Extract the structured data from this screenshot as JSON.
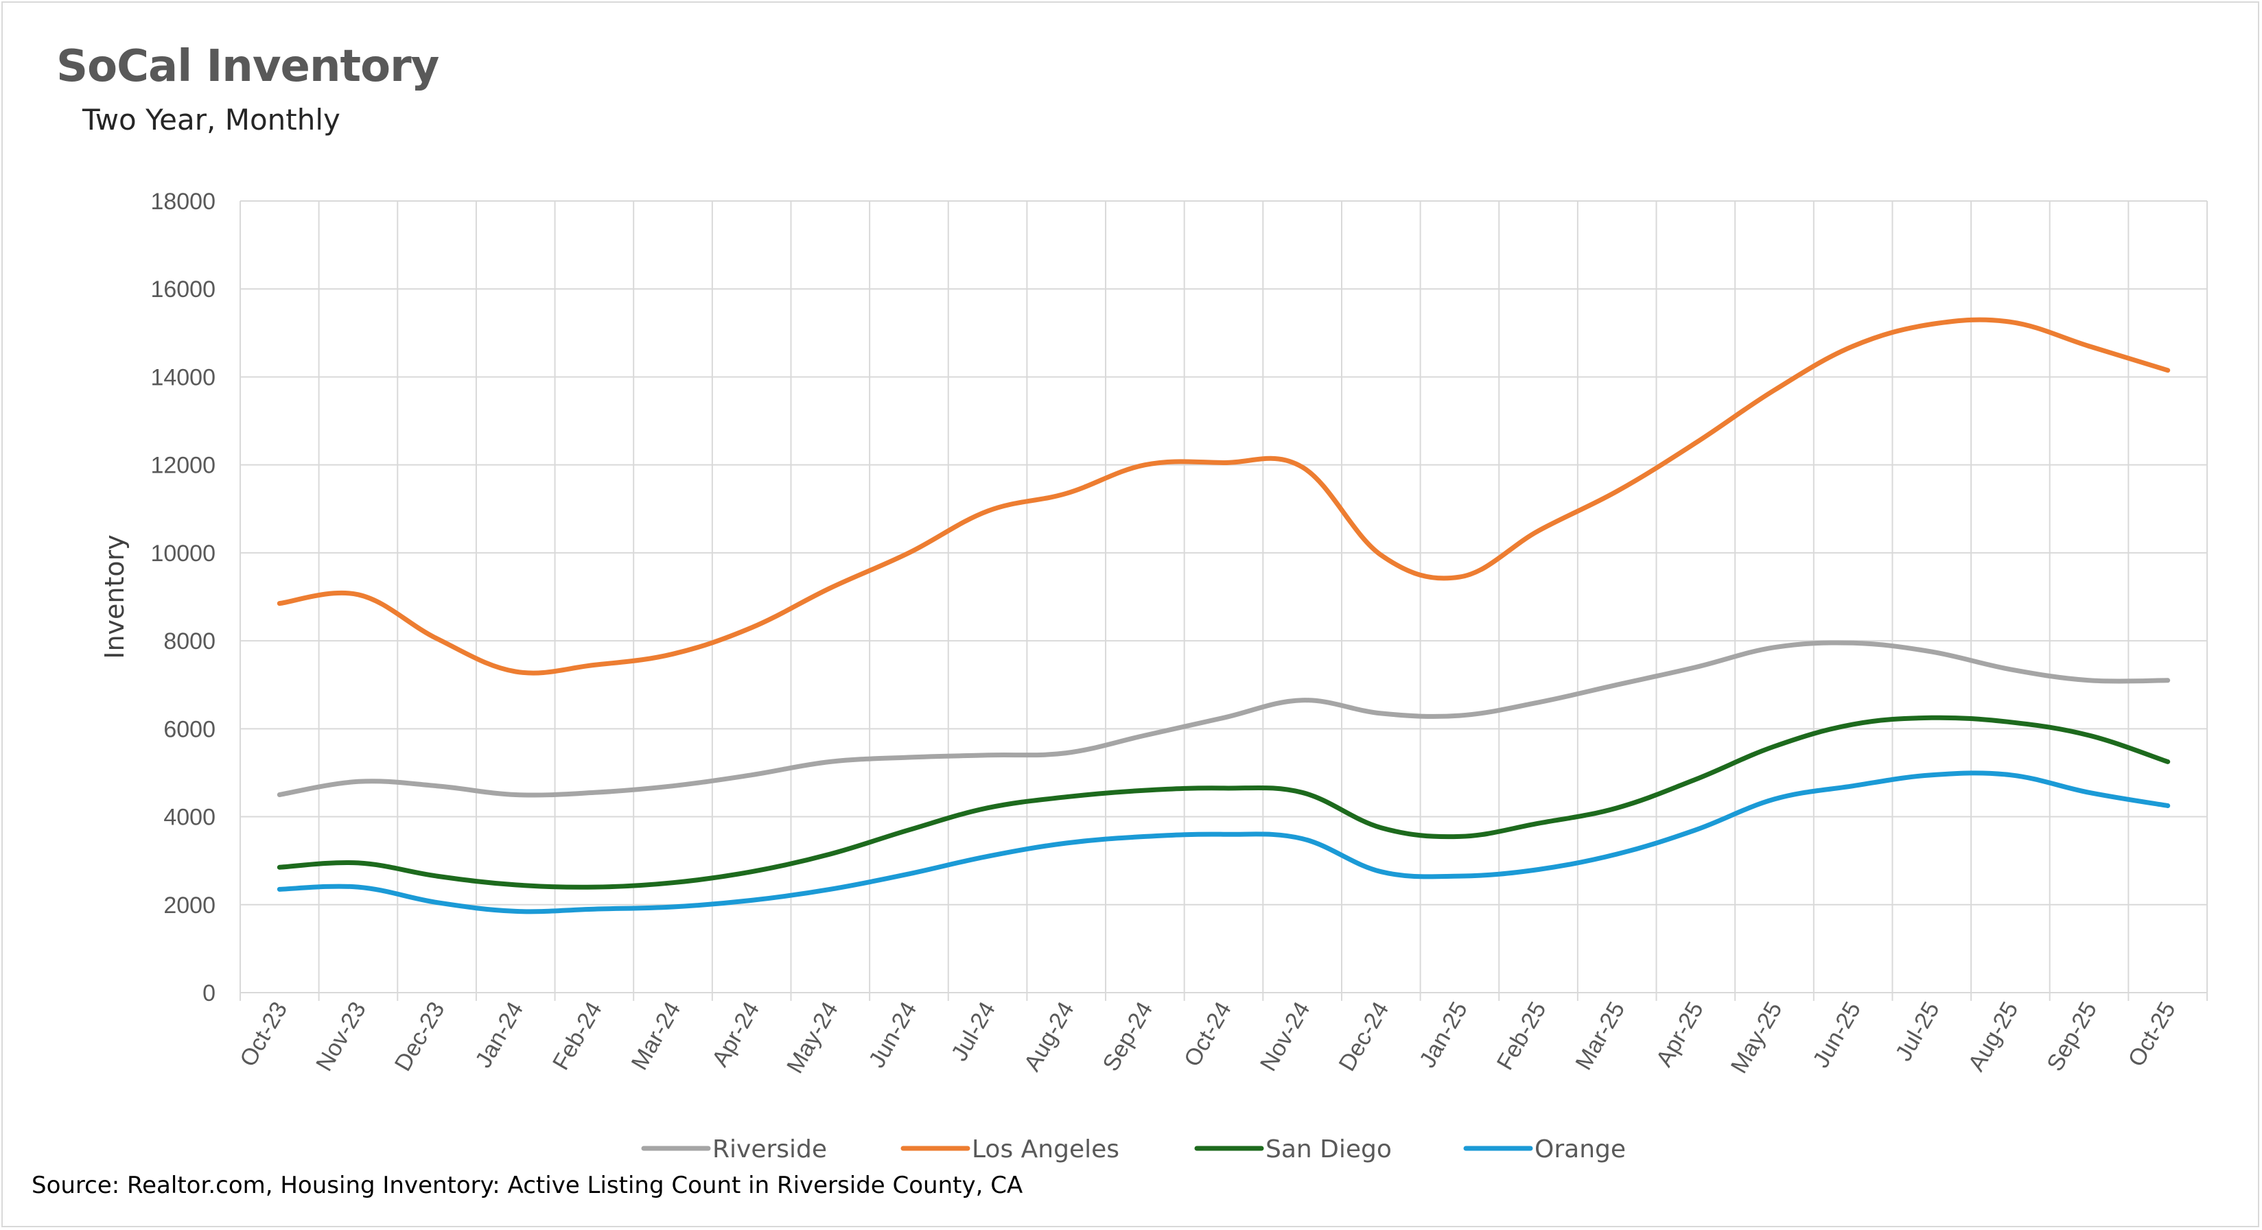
{
  "title": "SoCal Inventory",
  "subtitle": "Two Year, Monthly",
  "source": "Source: Realtor.com, Housing Inventory: Active Listing Count in Riverside County, CA",
  "chart_data": {
    "type": "line",
    "title": "SoCal Inventory",
    "subtitle": "Two Year, Monthly",
    "xlabel": "",
    "ylabel": "Inventory",
    "ylim": [
      0,
      18000
    ],
    "yticks": [
      0,
      2000,
      4000,
      6000,
      8000,
      10000,
      12000,
      14000,
      16000,
      18000
    ],
    "grid": true,
    "legend_position": "bottom",
    "categories": [
      "Oct-23",
      "Nov-23",
      "Dec-23",
      "Jan-24",
      "Feb-24",
      "Mar-24",
      "Apr-24",
      "May-24",
      "Jun-24",
      "Jul-24",
      "Aug-24",
      "Sep-24",
      "Oct-24",
      "Nov-24",
      "Dec-24",
      "Jan-25",
      "Feb-25",
      "Mar-25",
      "Apr-25",
      "May-25",
      "Jun-25",
      "Jul-25",
      "Aug-25",
      "Sep-25",
      "Oct-25"
    ],
    "series": [
      {
        "name": "Riverside",
        "color": "#a5a5a5",
        "values": [
          4500,
          4800,
          4700,
          4500,
          4550,
          4700,
          4950,
          5250,
          5350,
          5400,
          5450,
          5850,
          6250,
          6650,
          6350,
          6300,
          6600,
          7000,
          7400,
          7850,
          7950,
          7750,
          7350,
          7100,
          7100
        ]
      },
      {
        "name": "Los Angeles",
        "color": "#ed7d31",
        "values": [
          8850,
          9050,
          8050,
          7300,
          7450,
          7700,
          8300,
          9200,
          10000,
          10950,
          11350,
          12000,
          12050,
          11950,
          9950,
          9450,
          10500,
          11400,
          12500,
          13700,
          14700,
          15200,
          15250,
          14700,
          14150
        ]
      },
      {
        "name": "San Diego",
        "color": "#1d6a1d",
        "values": [
          2850,
          2950,
          2650,
          2450,
          2400,
          2500,
          2750,
          3150,
          3700,
          4200,
          4450,
          4600,
          4650,
          4550,
          3750,
          3550,
          3850,
          4200,
          4850,
          5600,
          6100,
          6250,
          6150,
          5850,
          5250
        ]
      },
      {
        "name": "Orange",
        "color": "#1b9ad6",
        "values": [
          2350,
          2400,
          2050,
          1850,
          1900,
          1950,
          2100,
          2350,
          2700,
          3100,
          3400,
          3550,
          3600,
          3500,
          2750,
          2650,
          2800,
          3150,
          3700,
          4400,
          4700,
          4950,
          4950,
          4550,
          4250
        ]
      }
    ]
  }
}
